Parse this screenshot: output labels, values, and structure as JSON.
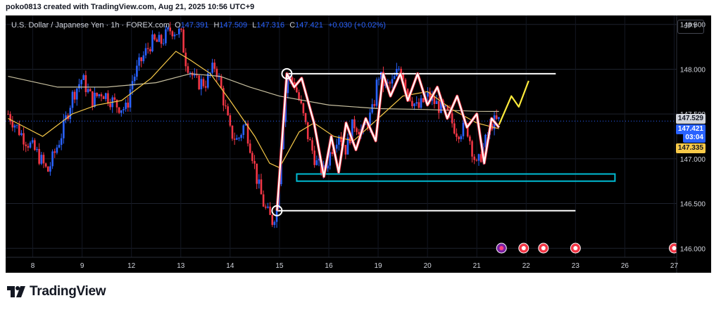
{
  "header": {
    "created_by": "poko0813 created with TradingView.com, Aug 21, 2025 10:56 UTC+9"
  },
  "symbol_bar": {
    "name": "U.S. Dollar / Japanese Yen · 1h · FOREX.com",
    "o_label": "O",
    "o": "147.391",
    "h_label": "H",
    "h": "147.509",
    "l_label": "L",
    "l": "147.316",
    "c_label": "C",
    "c": "147.421",
    "change": "+0.030 (+0.02%)"
  },
  "currency_button": "JPY",
  "price_labels": {
    "ma_slow": "147.529",
    "last_price": "147.421",
    "countdown": "03:04",
    "ma_fast": "147.335"
  },
  "brand": "TradingView",
  "colors": {
    "background": "#000000",
    "up_candle": "#2962ff",
    "down_candle": "#f23645",
    "ma_fast": "#f7c948",
    "ma_slow": "#c8c0a0",
    "drawing": "#ffffff",
    "support_box": "#00bcd4",
    "projection": "#ffeb3b"
  },
  "chart_data": {
    "type": "candlestick",
    "instrument": "USD/JPY",
    "timeframe": "1h",
    "y_ticks": [
      "146.000",
      "146.500",
      "147.000",
      "147.500",
      "148.000",
      "148.500"
    ],
    "ylim": [
      145.9,
      148.6
    ],
    "x_ticks": [
      "8",
      "9",
      "12",
      "13",
      "14",
      "15",
      "16",
      "19",
      "20",
      "21",
      "22",
      "23",
      "26",
      "27"
    ],
    "x_tick_values": [
      0,
      1,
      2,
      3,
      4,
      5,
      6,
      7,
      8,
      9,
      10,
      11,
      12,
      13
    ],
    "xlim": [
      -0.55,
      13.05
    ],
    "price_path": [
      [
        -0.5,
        147.5
      ],
      [
        -0.2,
        147.25
      ],
      [
        0.1,
        147.05
      ],
      [
        0.3,
        146.85
      ],
      [
        0.6,
        147.3
      ],
      [
        0.8,
        147.7
      ],
      [
        1.0,
        147.9
      ],
      [
        1.2,
        147.65
      ],
      [
        1.4,
        147.75
      ],
      [
        1.7,
        147.6
      ],
      [
        1.9,
        147.55
      ],
      [
        2.0,
        147.85
      ],
      [
        2.2,
        148.1
      ],
      [
        2.4,
        148.3
      ],
      [
        2.6,
        148.3
      ],
      [
        2.8,
        148.45
      ],
      [
        3.0,
        148.4
      ],
      [
        3.1,
        148.1
      ],
      [
        3.3,
        147.85
      ],
      [
        3.5,
        147.85
      ],
      [
        3.7,
        148.05
      ],
      [
        3.85,
        147.7
      ],
      [
        4.0,
        147.3
      ],
      [
        4.15,
        147.2
      ],
      [
        4.3,
        147.4
      ],
      [
        4.45,
        147.05
      ],
      [
        4.55,
        146.75
      ],
      [
        4.7,
        146.45
      ],
      [
        4.85,
        146.3
      ],
      [
        4.95,
        146.45
      ],
      [
        5.05,
        147.3
      ],
      [
        5.15,
        147.9
      ],
      [
        5.3,
        147.85
      ],
      [
        5.45,
        147.55
      ],
      [
        5.6,
        147.2
      ],
      [
        5.75,
        146.95
      ],
      [
        5.9,
        146.85
      ],
      [
        6.05,
        147.1
      ],
      [
        6.2,
        147.3
      ],
      [
        6.35,
        147.1
      ],
      [
        6.5,
        147.4
      ],
      [
        6.7,
        147.3
      ],
      [
        6.9,
        147.55
      ],
      [
        7.0,
        147.95
      ],
      [
        7.15,
        147.8
      ],
      [
        7.3,
        147.85
      ],
      [
        7.45,
        148.05
      ],
      [
        7.6,
        147.75
      ],
      [
        7.8,
        147.55
      ],
      [
        8.0,
        147.7
      ],
      [
        8.2,
        147.6
      ],
      [
        8.4,
        147.5
      ],
      [
        8.6,
        147.3
      ],
      [
        8.8,
        147.35
      ],
      [
        9.0,
        146.9
      ],
      [
        9.15,
        147.15
      ],
      [
        9.3,
        147.4
      ],
      [
        9.45,
        147.42
      ]
    ],
    "ma_fast_path": [
      [
        -0.5,
        147.45
      ],
      [
        0.2,
        147.25
      ],
      [
        0.8,
        147.5
      ],
      [
        1.3,
        147.6
      ],
      [
        1.8,
        147.65
      ],
      [
        2.4,
        147.9
      ],
      [
        2.9,
        148.2
      ],
      [
        3.2,
        148.1
      ],
      [
        3.6,
        147.95
      ],
      [
        4.0,
        147.65
      ],
      [
        4.5,
        147.25
      ],
      [
        4.8,
        146.95
      ],
      [
        5.0,
        146.9
      ],
      [
        5.4,
        147.3
      ],
      [
        5.7,
        147.4
      ],
      [
        6.1,
        147.25
      ],
      [
        6.5,
        147.2
      ],
      [
        7.0,
        147.45
      ],
      [
        7.5,
        147.7
      ],
      [
        8.0,
        147.75
      ],
      [
        8.5,
        147.55
      ],
      [
        9.0,
        147.4
      ],
      [
        9.45,
        147.335
      ]
    ],
    "ma_slow_path": [
      [
        -0.5,
        147.92
      ],
      [
        0.5,
        147.8
      ],
      [
        1.5,
        147.8
      ],
      [
        2.5,
        147.85
      ],
      [
        3.2,
        147.95
      ],
      [
        3.8,
        147.92
      ],
      [
        4.4,
        147.8
      ],
      [
        5.0,
        147.7
      ],
      [
        6.0,
        147.6
      ],
      [
        7.0,
        147.56
      ],
      [
        8.0,
        147.55
      ],
      [
        9.0,
        147.53
      ],
      [
        9.45,
        147.529
      ]
    ],
    "annotations": {
      "resistance_line": {
        "from_x": 5.15,
        "to_x": 10.6,
        "price": 147.95
      },
      "support_line": {
        "from_x": 4.95,
        "to_x": 11.0,
        "price": 146.42
      },
      "support_zone": {
        "from_x": 5.35,
        "to_x": 11.8,
        "price_top": 146.83,
        "price_bottom": 146.75
      },
      "swing_zigzag": [
        [
          4.95,
          146.42
        ],
        [
          5.15,
          147.95
        ],
        [
          5.3,
          147.8
        ],
        [
          5.45,
          147.9
        ],
        [
          5.7,
          147.4
        ],
        [
          5.9,
          146.8
        ],
        [
          6.05,
          147.25
        ],
        [
          6.2,
          146.85
        ],
        [
          6.35,
          147.4
        ],
        [
          6.55,
          147.1
        ],
        [
          6.75,
          147.45
        ],
        [
          6.95,
          147.2
        ],
        [
          7.1,
          147.95
        ],
        [
          7.25,
          147.7
        ],
        [
          7.45,
          147.95
        ],
        [
          7.6,
          147.65
        ],
        [
          7.8,
          147.95
        ],
        [
          8.0,
          147.6
        ],
        [
          8.2,
          147.8
        ],
        [
          8.4,
          147.45
        ],
        [
          8.6,
          147.7
        ],
        [
          8.8,
          147.35
        ],
        [
          9.0,
          147.5
        ],
        [
          9.15,
          146.95
        ],
        [
          9.3,
          147.45
        ],
        [
          9.45,
          147.35
        ]
      ],
      "projection": [
        [
          9.45,
          147.38
        ],
        [
          9.7,
          147.7
        ],
        [
          9.85,
          147.58
        ],
        [
          10.05,
          147.87
        ]
      ],
      "circle_markers": [
        [
          5.15,
          147.95
        ],
        [
          4.95,
          146.42
        ]
      ],
      "event_markers_x": [
        9.5,
        9.95,
        10.35,
        11.0,
        13.0
      ]
    }
  }
}
